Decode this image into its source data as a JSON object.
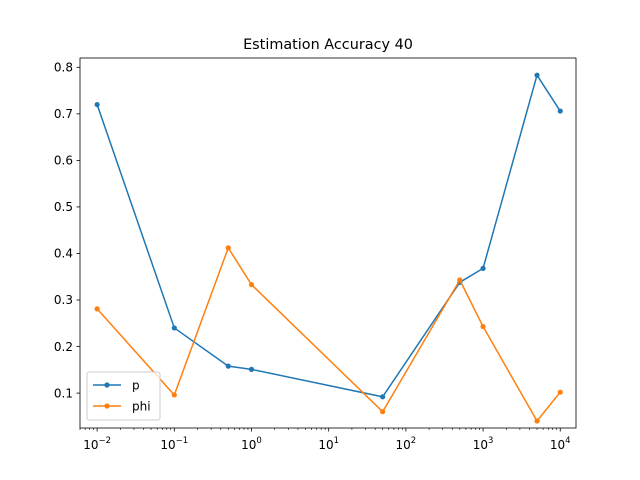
{
  "chart_data": {
    "type": "line",
    "title": "Estimation Accuracy 40",
    "xlabel": "",
    "ylabel": "",
    "xscale": "log",
    "xlim": [
      0.006,
      16000
    ],
    "ylim": [
      0.025,
      0.82
    ],
    "x": [
      0.01,
      0.1,
      0.5,
      1,
      50,
      500,
      1000,
      5000,
      10000
    ],
    "x_ticks": [
      0.01,
      0.1,
      1,
      10,
      100,
      1000,
      10000
    ],
    "x_tick_labels": [
      {
        "base": "10",
        "exp": "−2"
      },
      {
        "base": "10",
        "exp": "−1"
      },
      {
        "base": "10",
        "exp": "0"
      },
      {
        "base": "10",
        "exp": "1"
      },
      {
        "base": "10",
        "exp": "2"
      },
      {
        "base": "10",
        "exp": "3"
      },
      {
        "base": "10",
        "exp": "4"
      }
    ],
    "y_ticks": [
      0.1,
      0.2,
      0.3,
      0.4,
      0.5,
      0.6,
      0.7,
      0.8
    ],
    "y_tick_labels": [
      "0.1",
      "0.2",
      "0.3",
      "0.4",
      "0.5",
      "0.6",
      "0.7",
      "0.8"
    ],
    "grid": false,
    "legend_position": "lower-left",
    "series": [
      {
        "name": "p",
        "color": "#1f77b4",
        "marker": "point",
        "values": [
          0.72,
          0.24,
          0.158,
          0.151,
          0.092,
          0.338,
          0.368,
          0.783,
          0.706
        ]
      },
      {
        "name": "phi",
        "color": "#ff7f0e",
        "marker": "point",
        "values": [
          0.281,
          0.096,
          0.412,
          0.333,
          0.06,
          0.343,
          0.243,
          0.04,
          0.102
        ]
      }
    ]
  }
}
